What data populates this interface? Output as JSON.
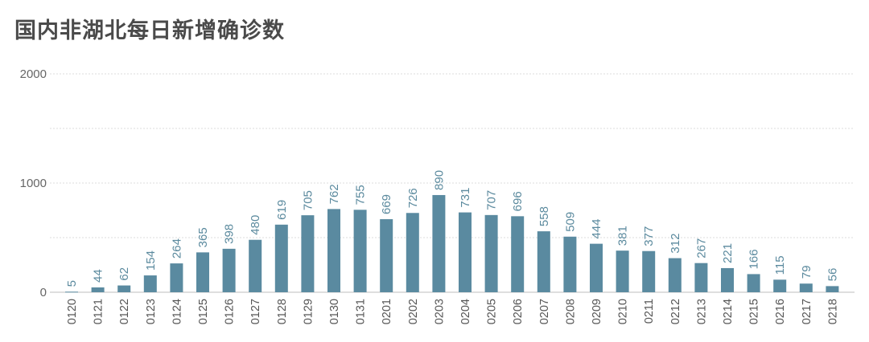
{
  "chart_data": {
    "type": "bar",
    "title": "国内非湖北每日新增确诊数",
    "xlabel": "",
    "ylabel": "",
    "ylim": [
      0,
      2000
    ],
    "yticks": [
      0,
      1000,
      2000
    ],
    "grid": true,
    "bar_color": "#5a8aa0",
    "label_color": "#5b8a9e",
    "categories": [
      "0120",
      "0121",
      "0122",
      "0123",
      "0124",
      "0125",
      "0126",
      "0127",
      "0128",
      "0129",
      "0130",
      "0131",
      "0201",
      "0202",
      "0203",
      "0204",
      "0205",
      "0206",
      "0207",
      "0208",
      "0209",
      "0210",
      "0211",
      "0212",
      "0213",
      "0214",
      "0215",
      "0216",
      "0217",
      "0218"
    ],
    "values": [
      5,
      44,
      62,
      154,
      264,
      365,
      398,
      480,
      619,
      705,
      762,
      755,
      669,
      726,
      890,
      731,
      707,
      696,
      558,
      509,
      444,
      381,
      377,
      312,
      267,
      221,
      166,
      115,
      79,
      56
    ]
  }
}
